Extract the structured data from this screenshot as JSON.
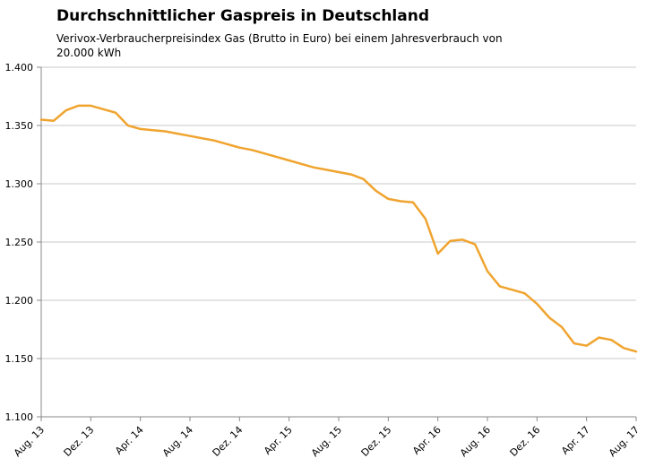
{
  "header": {
    "title": "Durchschnittlicher Gaspreis in Deutschland",
    "subtitle_line1": "Verivox-Verbraucherpreisindex Gas (Brutto in Euro) bei einem  Jahresverbrauch von",
    "subtitle_line2": "20.000 kWh"
  },
  "colors": {
    "line": "#F0A42F",
    "grid": "#C9C9C9",
    "axis": "#888888",
    "text": "#000000",
    "background": "#FFFFFF"
  },
  "chart_data": {
    "type": "line",
    "title": "Durchschnittlicher Gaspreis in Deutschland",
    "subtitle": "Verivox-Verbraucherpreisindex Gas (Brutto in Euro) bei einem Jahresverbrauch von 20.000 kWh",
    "xlabel": "",
    "ylabel": "",
    "ylim": [
      1.1,
      1.4
    ],
    "grid": "horizontal",
    "legend": "none",
    "y_ticks": [
      1.1,
      1.15,
      1.2,
      1.25,
      1.3,
      1.35,
      1.4
    ],
    "x_tick_labels": [
      "Aug. 13",
      "Dez. 13",
      "Apr. 14",
      "Aug. 14",
      "Dez. 14",
      "Apr. 15",
      "Aug. 15",
      "Dez. 15",
      "Apr. 16",
      "Aug. 16",
      "Dez. 16",
      "Apr. 17",
      "Aug. 17"
    ],
    "x_tick_positions": [
      0,
      4,
      8,
      12,
      16,
      20,
      24,
      28,
      32,
      36,
      40,
      44,
      48
    ],
    "categories": [
      "Aug. 13",
      "Sep. 13",
      "Okt. 13",
      "Nov. 13",
      "Dez. 13",
      "Jan. 14",
      "Feb. 14",
      "Mrz. 14",
      "Apr. 14",
      "Mai 14",
      "Jun. 14",
      "Jul. 14",
      "Aug. 14",
      "Sep. 14",
      "Okt. 14",
      "Nov. 14",
      "Dez. 14",
      "Jan. 15",
      "Feb. 15",
      "Mrz. 15",
      "Apr. 15",
      "Mai 15",
      "Jun. 15",
      "Jul. 15",
      "Aug. 15",
      "Sep. 15",
      "Okt. 15",
      "Nov. 15",
      "Dez. 15",
      "Jan. 16",
      "Feb. 16",
      "Mrz. 16",
      "Apr. 16",
      "Mai 16",
      "Jun. 16",
      "Jul. 16",
      "Aug. 16",
      "Sep. 16",
      "Okt. 16",
      "Nov. 16",
      "Dez. 16",
      "Jan. 17",
      "Feb. 17",
      "Mrz. 17",
      "Apr. 17",
      "Mai 17",
      "Jun. 17",
      "Jul. 17",
      "Aug. 17"
    ],
    "series": [
      {
        "name": "Verbraucherpreisindex Gas (Brutto in Euro)",
        "color": "#F0A42F",
        "values": [
          1.355,
          1.354,
          1.363,
          1.367,
          1.367,
          1.364,
          1.361,
          1.35,
          1.347,
          1.346,
          1.345,
          1.343,
          1.341,
          1.339,
          1.337,
          1.334,
          1.331,
          1.329,
          1.326,
          1.323,
          1.32,
          1.317,
          1.314,
          1.312,
          1.31,
          1.308,
          1.304,
          1.294,
          1.287,
          1.285,
          1.284,
          1.27,
          1.24,
          1.251,
          1.252,
          1.248,
          1.225,
          1.212,
          1.209,
          1.206,
          1.197,
          1.185,
          1.177,
          1.163,
          1.161,
          1.168,
          1.166,
          1.159,
          1.156
        ]
      }
    ]
  }
}
